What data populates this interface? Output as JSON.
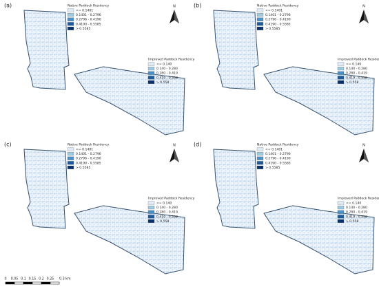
{
  "panels": [
    {
      "label": "(a)"
    },
    {
      "label": "(b)"
    },
    {
      "label": "(c)"
    },
    {
      "label": "(d)"
    }
  ],
  "native_legend": {
    "title": "Native Paddock Residency",
    "items": [
      {
        "label": "<= 0.1401",
        "color": "#deebf7"
      },
      {
        "label": "0.1401 - 0.2796",
        "color": "#9ecae1"
      },
      {
        "label": "0.2796 - 0.4190",
        "color": "#4a8fc4"
      },
      {
        "label": "0.4190 - 0.5585",
        "color": "#1f5a9a"
      },
      {
        "label": "> 0.5585",
        "color": "#08306b"
      }
    ]
  },
  "improved_legend": {
    "title": "Improved Paddock Residency",
    "items": [
      {
        "label": "<= 0.140",
        "color": "#deebf7"
      },
      {
        "label": "0.140 - 0.280",
        "color": "#9ecae1"
      },
      {
        "label": "0.280 - 0.419",
        "color": "#4a8fc4"
      },
      {
        "label": "0.419 - 0.558",
        "color": "#1f5a9a"
      },
      {
        "label": "> 0.558",
        "color": "#08306b"
      }
    ]
  },
  "north": "N",
  "scale_bar": {
    "labels": [
      "0",
      "0.05",
      "0.1",
      "0.15",
      "0.2",
      "0.25",
      "0.3 km"
    ]
  }
}
